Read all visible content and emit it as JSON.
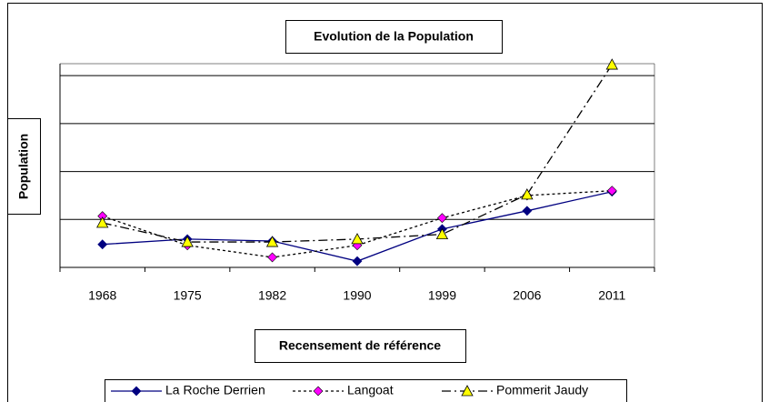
{
  "chart_data": {
    "type": "line",
    "title": "Evolution de la Population",
    "x_label": "Recensement de référence",
    "y_label": "Population",
    "categories": [
      "1968",
      "1975",
      "1982",
      "1990",
      "1999",
      "2006",
      "2011"
    ],
    "ylim": [
      0,
      4.25
    ],
    "yticks": [
      0,
      1,
      2,
      3,
      4
    ],
    "grid": true,
    "series": [
      {
        "name": "La Roche Derrien",
        "color": "#000080",
        "line_color": "#000080",
        "dash": "solid",
        "marker": "diamond",
        "values": [
          0.48,
          0.59,
          0.55,
          0.13,
          0.8,
          1.18,
          1.58
        ]
      },
      {
        "name": "Langoat",
        "color": "#ff00ff",
        "line_color": "#000000",
        "dash": "dotted",
        "marker": "diamond",
        "values": [
          1.07,
          0.46,
          0.21,
          0.46,
          1.03,
          1.5,
          1.6
        ]
      },
      {
        "name": "Pommerit Jaudy",
        "color": "#ffff00",
        "line_color": "#000000",
        "dash": "dashdot",
        "marker": "triangle",
        "values": [
          0.93,
          0.53,
          0.53,
          0.59,
          0.69,
          1.52,
          4.23
        ]
      }
    ]
  }
}
